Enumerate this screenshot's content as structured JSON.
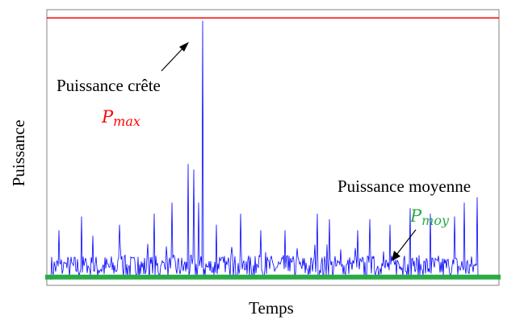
{
  "chart_data": {
    "type": "line",
    "xlabel": "Temps",
    "ylabel": "Puissance",
    "xlim": [
      0,
      560
    ],
    "ylim": [
      0,
      100
    ],
    "grid": false,
    "axis_ticks": false,
    "signal": {
      "color": "#0000ff",
      "baseline": 5,
      "peaks": [
        {
          "x": 10,
          "y": 20
        },
        {
          "x": 38,
          "y": 25
        },
        {
          "x": 52,
          "y": 18
        },
        {
          "x": 85,
          "y": 22
        },
        {
          "x": 128,
          "y": 26
        },
        {
          "x": 150,
          "y": 30
        },
        {
          "x": 170,
          "y": 44
        },
        {
          "x": 177,
          "y": 42
        },
        {
          "x": 183,
          "y": 30
        },
        {
          "x": 188,
          "y": 96
        },
        {
          "x": 205,
          "y": 22
        },
        {
          "x": 235,
          "y": 26
        },
        {
          "x": 260,
          "y": 20
        },
        {
          "x": 290,
          "y": 20
        },
        {
          "x": 330,
          "y": 26
        },
        {
          "x": 345,
          "y": 24
        },
        {
          "x": 380,
          "y": 20
        },
        {
          "x": 395,
          "y": 24
        },
        {
          "x": 420,
          "y": 22
        },
        {
          "x": 445,
          "y": 28
        },
        {
          "x": 470,
          "y": 26
        },
        {
          "x": 500,
          "y": 25
        },
        {
          "x": 512,
          "y": 30
        },
        {
          "x": 528,
          "y": 32
        },
        {
          "x": 537,
          "y": 27
        }
      ]
    },
    "reference_lines": [
      {
        "kind": "max",
        "value": 97,
        "color": "#ff0000"
      },
      {
        "kind": "mean",
        "value": 3,
        "color": "#2aaa46"
      }
    ],
    "annotations": {
      "peak": {
        "text": "Puissance crête",
        "symbol_base": "P",
        "symbol_sub": "max",
        "color": "#ff0000"
      },
      "mean": {
        "text": "Puissance moyenne",
        "symbol_base": "P",
        "symbol_sub": "moy",
        "color": "#2aaa46"
      }
    }
  }
}
